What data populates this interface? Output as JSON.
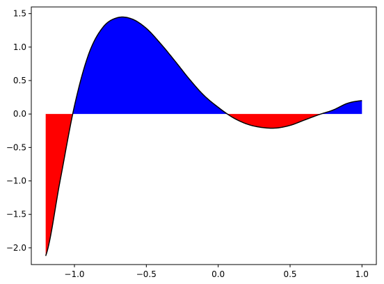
{
  "chart_data": {
    "type": "area",
    "title": "",
    "xlabel": "",
    "ylabel": "",
    "xlim": [
      -1.3,
      1.1
    ],
    "ylim": [
      -2.25,
      1.6
    ],
    "grid": false,
    "legend": "none",
    "x_ticks": [
      -1.0,
      -0.5,
      0.0,
      0.5,
      1.0
    ],
    "x_tick_labels": [
      "−1.0",
      "−0.5",
      "0.0",
      "0.5",
      "1.0"
    ],
    "y_ticks": [
      -2.0,
      -1.5,
      -1.0,
      -0.5,
      0.0,
      0.5,
      1.0,
      1.5
    ],
    "y_tick_labels": [
      "−2.0",
      "−1.5",
      "−1.0",
      "−0.5",
      "0.0",
      "0.5",
      "1.0",
      "1.5"
    ],
    "x": [
      -1.2,
      -1.1,
      -1.0,
      -0.9,
      -0.8,
      -0.7,
      -0.6,
      -0.5,
      -0.4,
      -0.3,
      -0.2,
      -0.1,
      0.0,
      0.1,
      0.2,
      0.3,
      0.4,
      0.5,
      0.6,
      0.7,
      0.8,
      0.9,
      1.0
    ],
    "y": [
      -2.12,
      -1.0,
      0.12,
      0.9,
      1.3,
      1.44,
      1.42,
      1.28,
      1.05,
      0.79,
      0.52,
      0.28,
      0.1,
      -0.05,
      -0.15,
      -0.2,
      -0.21,
      -0.17,
      -0.09,
      -0.01,
      0.06,
      0.16,
      0.2
    ],
    "fill_colors": {
      "positive": "#0000ff",
      "negative": "#ff0000"
    },
    "line_color": "#000000"
  }
}
